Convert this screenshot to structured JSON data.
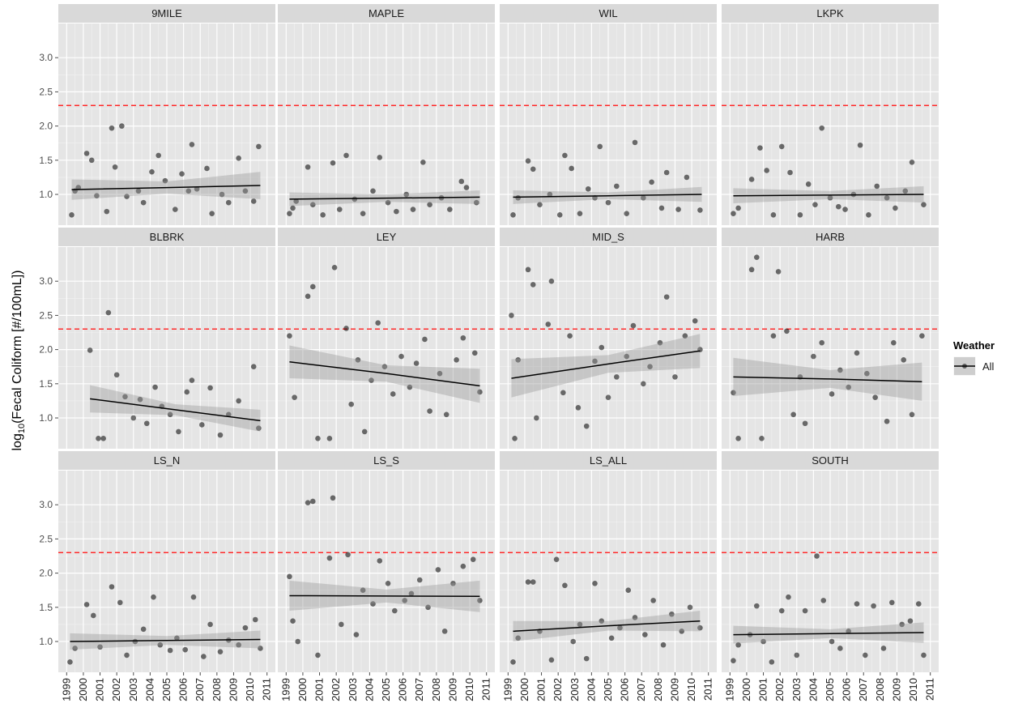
{
  "chart_data": {
    "type": "facet_scatter",
    "y_label": {
      "prefix": "log",
      "sub": "10",
      "rest": "(Fecal Coliform [#/100mL])"
    },
    "legend": {
      "title": "Weather",
      "entries": [
        "All"
      ],
      "position": "right"
    },
    "point_color": "#000000",
    "line_color": "#000000",
    "band_color": "#999999",
    "threshold": {
      "value": 2.3,
      "color": "#ff2a2a"
    },
    "xlim": [
      1998.5,
      2011.5
    ],
    "xticks": [
      1999,
      2000,
      2001,
      2002,
      2003,
      2004,
      2005,
      2006,
      2007,
      2008,
      2009,
      2010,
      2011
    ],
    "ylim": [
      0.55,
      3.5
    ],
    "yticks": [
      {
        "value": 1,
        "label": "1.0"
      },
      {
        "value": 1.5,
        "label": "1.5"
      },
      {
        "value": 2,
        "label": "2.0"
      },
      {
        "value": 2.5,
        "label": "2.5"
      },
      {
        "value": 3,
        "label": "3.0"
      }
    ],
    "grid": true,
    "panels": [
      {
        "name": "9MILE",
        "x": [
          1999.3,
          1999.5,
          1999.7,
          2000.2,
          2000.5,
          2000.8,
          2001.4,
          2001.7,
          2001.9,
          2002.3,
          2002.6,
          2003.3,
          2003.6,
          2004.1,
          2004.5,
          2004.9,
          2005.5,
          2005.9,
          2006.3,
          2006.5,
          2006.8,
          2007.4,
          2007.7,
          2008.3,
          2008.7,
          2009.3,
          2009.7,
          2010.2,
          2010.5
        ],
        "y": [
          0.7,
          1.05,
          1.1,
          1.6,
          1.5,
          0.98,
          0.75,
          1.97,
          1.4,
          2.0,
          0.97,
          1.05,
          0.88,
          1.33,
          1.57,
          1.2,
          0.78,
          1.3,
          1.05,
          1.73,
          1.08,
          1.38,
          0.72,
          1.0,
          0.88,
          1.53,
          1.05,
          0.9,
          1.7
        ],
        "fit_x": [
          1999.3,
          2005,
          2010.6
        ],
        "fit": [
          1.07,
          1.1,
          1.13
        ],
        "band_lo": [
          0.92,
          1.01,
          0.93
        ],
        "band_hi": [
          1.22,
          1.19,
          1.33
        ]
      },
      {
        "name": "MAPLE",
        "x": [
          1999.2,
          1999.4,
          1999.6,
          2000.3,
          2000.6,
          2001.2,
          2001.8,
          2002.2,
          2002.6,
          2003.1,
          2003.6,
          2004.2,
          2004.6,
          2005.1,
          2005.6,
          2006.2,
          2006.6,
          2007.2,
          2007.6,
          2008.3,
          2008.8,
          2009.5,
          2009.8,
          2010.4
        ],
        "y": [
          0.72,
          0.8,
          0.9,
          1.4,
          0.85,
          0.7,
          1.46,
          0.78,
          1.57,
          0.93,
          0.72,
          1.05,
          1.54,
          0.88,
          0.75,
          1.0,
          0.78,
          1.47,
          0.85,
          0.95,
          0.78,
          1.19,
          1.1,
          0.88
        ],
        "fit_x": [
          1999.2,
          2005,
          2010.6
        ],
        "fit": [
          0.93,
          0.945,
          0.96
        ],
        "band_lo": [
          0.83,
          0.89,
          0.86
        ],
        "band_hi": [
          1.03,
          1.0,
          1.06
        ]
      },
      {
        "name": "WIL",
        "x": [
          1999.3,
          1999.6,
          2000.2,
          2000.5,
          2000.9,
          2001.5,
          2002.1,
          2002.4,
          2002.8,
          2003.3,
          2003.8,
          2004.2,
          2004.5,
          2005.0,
          2005.5,
          2006.1,
          2006.6,
          2007.1,
          2007.6,
          2008.2,
          2008.5,
          2009.2,
          2009.7,
          2010.5
        ],
        "y": [
          0.7,
          0.95,
          1.49,
          1.37,
          0.85,
          1.0,
          0.7,
          1.57,
          1.38,
          0.72,
          1.08,
          0.95,
          1.7,
          0.88,
          1.12,
          0.72,
          1.76,
          0.95,
          1.18,
          0.8,
          1.32,
          0.78,
          1.25,
          0.77
        ],
        "fit_x": [
          1999.3,
          2005,
          2010.6
        ],
        "fit": [
          0.96,
          0.98,
          1.0
        ],
        "band_lo": [
          0.86,
          0.93,
          0.89
        ],
        "band_hi": [
          1.06,
          1.03,
          1.11
        ]
      },
      {
        "name": "LKPK",
        "x": [
          1999.2,
          1999.5,
          2000.3,
          2000.8,
          2001.2,
          2001.6,
          2002.1,
          2002.6,
          2003.2,
          2003.7,
          2004.1,
          2004.5,
          2005.0,
          2005.5,
          2005.9,
          2006.4,
          2006.8,
          2007.3,
          2007.8,
          2008.4,
          2008.9,
          2009.5,
          2009.9,
          2010.6
        ],
        "y": [
          0.72,
          0.8,
          1.22,
          1.68,
          1.35,
          0.7,
          1.7,
          1.32,
          0.7,
          1.15,
          0.85,
          1.97,
          0.95,
          0.82,
          0.78,
          1.0,
          1.72,
          0.7,
          1.12,
          0.95,
          0.8,
          1.05,
          1.47,
          0.85
        ],
        "fit_x": [
          1999.2,
          2005,
          2010.6
        ],
        "fit": [
          0.98,
          0.99,
          1.0
        ],
        "band_lo": [
          0.87,
          0.93,
          0.88
        ],
        "band_hi": [
          1.09,
          1.05,
          1.12
        ]
      },
      {
        "name": "BLBRK",
        "x": [
          2000.4,
          2000.9,
          2001.2,
          2001.5,
          2002.0,
          2002.5,
          2003.0,
          2003.4,
          2003.8,
          2004.3,
          2004.7,
          2005.2,
          2005.7,
          2006.2,
          2006.5,
          2007.1,
          2007.6,
          2008.2,
          2008.7,
          2009.3,
          2010.2,
          2010.5
        ],
        "y": [
          1.99,
          0.7,
          0.7,
          2.54,
          1.63,
          1.31,
          1.0,
          1.27,
          0.92,
          1.45,
          1.17,
          1.05,
          0.8,
          1.38,
          1.55,
          0.9,
          1.44,
          0.75,
          1.05,
          1.25,
          1.75,
          0.85
        ],
        "fit_x": [
          2000.4,
          2005.5,
          2010.6
        ],
        "fit": [
          1.28,
          1.12,
          0.96
        ],
        "band_lo": [
          1.08,
          1.04,
          0.8
        ],
        "band_hi": [
          1.48,
          1.2,
          1.12
        ]
      },
      {
        "name": "LEY",
        "x": [
          1999.2,
          1999.5,
          2000.3,
          2000.6,
          2000.9,
          2001.6,
          2001.9,
          2002.6,
          2002.9,
          2003.3,
          2003.7,
          2004.1,
          2004.5,
          2004.9,
          2005.4,
          2005.9,
          2006.4,
          2006.8,
          2007.3,
          2007.6,
          2008.2,
          2008.6,
          2009.2,
          2009.6,
          2010.3,
          2010.6
        ],
        "y": [
          2.2,
          1.3,
          2.78,
          2.92,
          0.7,
          0.7,
          3.2,
          2.31,
          1.2,
          1.85,
          0.8,
          1.55,
          2.39,
          1.75,
          1.35,
          1.9,
          1.45,
          1.8,
          2.15,
          1.1,
          1.65,
          1.05,
          1.85,
          2.17,
          1.95,
          1.38
        ],
        "fit_x": [
          1999.2,
          2005,
          2010.6
        ],
        "fit": [
          1.82,
          1.65,
          1.47
        ],
        "band_lo": [
          1.58,
          1.53,
          1.22
        ],
        "band_hi": [
          2.06,
          1.77,
          1.72
        ]
      },
      {
        "name": "MID_S",
        "x": [
          1999.2,
          1999.4,
          1999.6,
          2000.2,
          2000.5,
          2000.7,
          2001.4,
          2001.6,
          2002.3,
          2002.7,
          2003.2,
          2003.7,
          2004.2,
          2004.6,
          2005.0,
          2005.5,
          2006.1,
          2006.5,
          2007.1,
          2007.5,
          2008.1,
          2008.5,
          2009.0,
          2009.6,
          2010.2,
          2010.5
        ],
        "y": [
          2.5,
          0.7,
          1.85,
          3.17,
          2.95,
          1.0,
          2.37,
          3.0,
          1.37,
          2.2,
          1.15,
          0.88,
          1.83,
          2.03,
          1.3,
          1.6,
          1.9,
          2.35,
          1.5,
          1.75,
          2.1,
          2.77,
          1.6,
          2.2,
          2.42,
          2.0
        ],
        "fit_x": [
          1999.2,
          2005,
          2010.5
        ],
        "fit": [
          1.58,
          1.79,
          1.98
        ],
        "band_lo": [
          1.3,
          1.66,
          1.73
        ],
        "band_hi": [
          1.86,
          1.92,
          2.23
        ]
      },
      {
        "name": "HARB",
        "x": [
          1999.2,
          1999.5,
          2000.3,
          2000.6,
          2000.9,
          2001.6,
          2001.9,
          2002.4,
          2002.8,
          2003.2,
          2003.5,
          2004.0,
          2004.5,
          2005.1,
          2005.6,
          2006.1,
          2006.6,
          2007.2,
          2007.7,
          2008.4,
          2008.8,
          2009.4,
          2009.9,
          2010.5
        ],
        "y": [
          1.37,
          0.7,
          3.17,
          3.35,
          0.7,
          2.2,
          3.14,
          2.27,
          1.05,
          1.6,
          0.92,
          1.9,
          2.1,
          1.35,
          1.7,
          1.45,
          1.95,
          1.65,
          1.3,
          0.95,
          2.1,
          1.85,
          1.05,
          2.2
        ],
        "fit_x": [
          1999.2,
          2005,
          2010.5
        ],
        "fit": [
          1.6,
          1.57,
          1.53
        ],
        "band_lo": [
          1.32,
          1.44,
          1.25
        ],
        "band_hi": [
          1.88,
          1.7,
          1.81
        ]
      },
      {
        "name": "LS_N",
        "x": [
          1999.2,
          1999.5,
          2000.2,
          2000.6,
          2001.0,
          2001.7,
          2002.2,
          2002.6,
          2003.1,
          2003.6,
          2004.2,
          2004.6,
          2005.2,
          2005.6,
          2006.1,
          2006.6,
          2007.2,
          2007.6,
          2008.2,
          2008.7,
          2009.3,
          2009.7,
          2010.3,
          2010.6
        ],
        "y": [
          0.7,
          0.9,
          1.54,
          1.38,
          0.92,
          1.8,
          1.57,
          0.8,
          1.0,
          1.18,
          1.65,
          0.95,
          0.87,
          1.05,
          0.88,
          1.65,
          0.78,
          1.25,
          0.85,
          1.02,
          0.95,
          1.2,
          1.32,
          0.9
        ],
        "fit_x": [
          1999.2,
          2005,
          2010.6
        ],
        "fit": [
          1.0,
          1.015,
          1.03
        ],
        "band_lo": [
          0.88,
          0.95,
          0.9
        ],
        "band_hi": [
          1.12,
          1.08,
          1.16
        ]
      },
      {
        "name": "LS_S",
        "x": [
          1999.2,
          1999.4,
          1999.7,
          2000.3,
          2000.6,
          2000.9,
          2001.6,
          2001.8,
          2002.3,
          2002.7,
          2003.2,
          2003.6,
          2004.2,
          2004.6,
          2005.1,
          2005.5,
          2006.1,
          2006.5,
          2007.0,
          2007.5,
          2008.1,
          2008.5,
          2009.0,
          2009.6,
          2010.2,
          2010.6
        ],
        "y": [
          1.95,
          1.3,
          1.0,
          3.03,
          3.05,
          0.8,
          2.22,
          3.1,
          1.25,
          2.27,
          1.1,
          1.75,
          1.55,
          2.18,
          1.85,
          1.45,
          1.6,
          1.7,
          1.9,
          1.5,
          2.05,
          1.15,
          1.85,
          2.1,
          2.2,
          1.6
        ],
        "fit_x": [
          1999.2,
          2005,
          2010.6
        ],
        "fit": [
          1.67,
          1.665,
          1.66
        ],
        "band_lo": [
          1.45,
          1.57,
          1.43
        ],
        "band_hi": [
          1.89,
          1.76,
          1.89
        ]
      },
      {
        "name": "LS_ALL",
        "x": [
          1999.3,
          1999.6,
          2000.2,
          2000.5,
          2000.9,
          2001.6,
          2001.9,
          2002.4,
          2002.9,
          2003.3,
          2003.7,
          2004.2,
          2004.6,
          2005.2,
          2005.7,
          2006.2,
          2006.6,
          2007.2,
          2007.7,
          2008.3,
          2008.8,
          2009.4,
          2009.9,
          2010.5
        ],
        "y": [
          0.7,
          1.05,
          1.87,
          1.87,
          1.15,
          0.73,
          2.2,
          1.82,
          1.0,
          1.25,
          0.75,
          1.85,
          1.3,
          1.05,
          1.2,
          1.75,
          1.35,
          1.1,
          1.6,
          0.95,
          1.4,
          1.15,
          1.5,
          1.2
        ],
        "fit_x": [
          1999.3,
          2005,
          2010.5
        ],
        "fit": [
          1.15,
          1.23,
          1.3
        ],
        "band_lo": [
          1.0,
          1.16,
          1.15
        ],
        "band_hi": [
          1.3,
          1.3,
          1.45
        ]
      },
      {
        "name": "SOUTH",
        "x": [
          1999.2,
          1999.5,
          2000.2,
          2000.6,
          2001.0,
          2001.5,
          2002.1,
          2002.5,
          2003.0,
          2003.5,
          2004.2,
          2004.6,
          2005.1,
          2005.6,
          2006.1,
          2006.6,
          2007.1,
          2007.6,
          2008.2,
          2008.7,
          2009.3,
          2009.8,
          2010.3,
          2010.6
        ],
        "y": [
          0.72,
          0.95,
          1.1,
          1.52,
          1.0,
          0.7,
          1.45,
          1.65,
          0.8,
          1.45,
          2.25,
          1.6,
          1.0,
          0.9,
          1.15,
          1.55,
          0.8,
          1.52,
          0.9,
          1.57,
          1.25,
          1.3,
          1.55,
          0.8
        ],
        "fit_x": [
          1999.2,
          2005,
          2010.6
        ],
        "fit": [
          1.1,
          1.115,
          1.13
        ],
        "band_lo": [
          0.97,
          1.05,
          0.98
        ],
        "band_hi": [
          1.23,
          1.18,
          1.28
        ]
      }
    ]
  }
}
